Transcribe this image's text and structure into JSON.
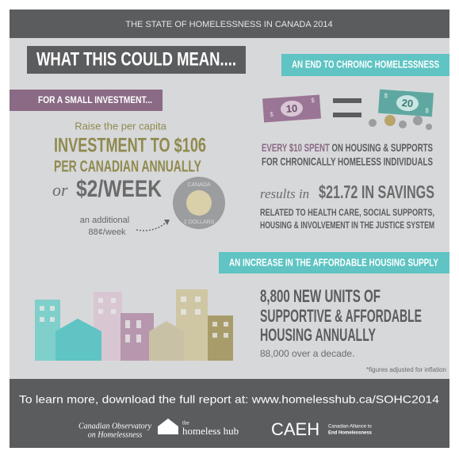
{
  "header": {
    "title": "THE STATE OF HOMELESSNESS IN CANADA 2014"
  },
  "main_heading": "WHAT THIS COULD MEAN....",
  "investment": {
    "label": "FOR A SMALL INVESTMENT...",
    "intro": "Raise the per capita",
    "line1": "INVESTMENT TO $106",
    "line2": "PER CANADIAN ANNUALLY",
    "or": "or",
    "weekly": "$2/WEEK",
    "extra1": "an additional",
    "extra2": "88¢/week",
    "coin_top": "CANADA",
    "coin_bottom": "2 DOLLARS"
  },
  "chronic": {
    "label": "AN END TO CHRONIC HOMELESSNESS",
    "bill_small": "10",
    "bill_large": "20",
    "currency": "$",
    "spent_highlight": "EVERY $10 SPENT",
    "spent_rest": "ON HOUSING & SUPPORTS",
    "spent_line2": "FOR CHRONICALLY HOMELESS INDIVIDUALS",
    "results_in": "results in",
    "savings": "$21.72 IN SAVINGS",
    "related1": "RELATED TO HEALTH CARE, SOCIAL SUPPORTS,",
    "related2": "HOUSING & INVOLVEMENT IN THE JUSTICE SYSTEM"
  },
  "housing": {
    "label": "AN INCREASE IN THE AFFORDABLE HOUSING SUPPLY",
    "line1": "8,800 NEW UNITS OF",
    "line2": "SUPPORTIVE & AFFORDABLE",
    "line3": "HOUSING ANNUALLY",
    "decade": "88,000 over a decade.",
    "note": "*figures adjusted for inflation"
  },
  "footer": {
    "text": "To learn more, download the full report at: www.homelesshub.ca/SOHC2014",
    "logo1_line1": "Canadian Observatory",
    "logo1_line2": "on Homelessness",
    "logo2_small": "the",
    "logo2": "homeless hub",
    "logo3": "CAEH",
    "logo3_line1": "Canadian Alliance to",
    "logo3_line2": "End Homelessness"
  }
}
